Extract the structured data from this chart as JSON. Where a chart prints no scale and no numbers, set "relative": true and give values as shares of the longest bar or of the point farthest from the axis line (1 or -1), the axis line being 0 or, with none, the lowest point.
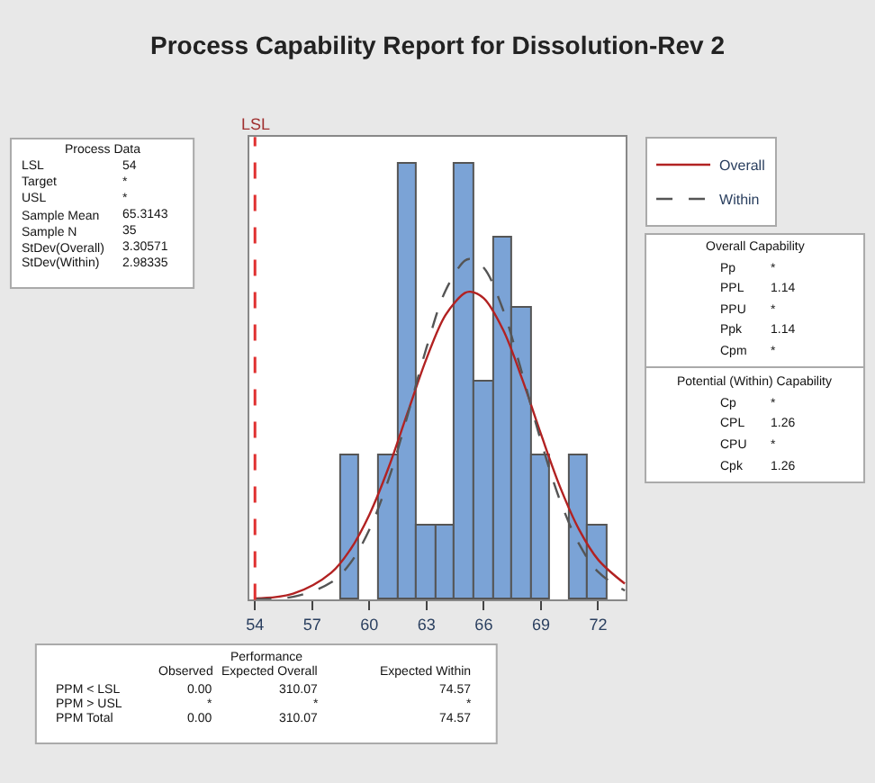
{
  "chart_data": [
    {
      "type": "histogram",
      "title": "Process Capability Report for Dissolution-Rev 2",
      "relative": true,
      "bins": [
        58.5,
        59.5,
        60.5,
        61.5,
        62.5,
        63.5,
        64.5,
        65.5,
        66.5,
        67.5,
        68.5,
        69.5,
        70.5,
        71.5,
        72.5
      ],
      "values": [
        0.33,
        0,
        0.33,
        1,
        0.17,
        0.17,
        1,
        0.5,
        0.83,
        0.67,
        0.33,
        0,
        0.33,
        0.17
      ],
      "color": "#7ba3d6",
      "series": [
        {
          "type": "line",
          "name": "Overall",
          "color": "#b22222",
          "line_style": "solid",
          "x": [
            54,
            56,
            58,
            59,
            60,
            61,
            62,
            63,
            64,
            65,
            65.3,
            66,
            67,
            68,
            69,
            70,
            71,
            72,
            73.4
          ],
          "values": [
            0.002,
            0.013,
            0.061,
            0.114,
            0.194,
            0.301,
            0.427,
            0.552,
            0.652,
            0.702,
            0.705,
            0.69,
            0.619,
            0.507,
            0.379,
            0.258,
            0.16,
            0.091,
            0.036
          ]
        },
        {
          "type": "line",
          "name": "Within",
          "color": "#555555",
          "line_style": "dashed",
          "x": [
            54,
            56,
            58,
            59,
            60,
            61,
            62,
            63,
            64,
            65,
            65.3,
            66,
            67,
            68,
            69,
            70,
            71,
            72,
            73.4
          ],
          "values": [
            0.001,
            0.006,
            0.039,
            0.083,
            0.16,
            0.274,
            0.421,
            0.577,
            0.708,
            0.776,
            0.78,
            0.76,
            0.665,
            0.52,
            0.363,
            0.227,
            0.127,
            0.063,
            0.02
          ]
        }
      ],
      "xlim": [
        53.7,
        73.45
      ],
      "xticks": [
        54,
        57,
        60,
        63,
        66,
        69,
        72
      ],
      "ref_lines": [
        {
          "axis": "x",
          "value": 54,
          "label": "LSL",
          "color": "#e03030",
          "line_style": "dashed"
        }
      ],
      "legend": "top right",
      "marker": "none"
    },
    {
      "type": "other",
      "title": "Process Data",
      "annotations": [
        "LSL",
        "54",
        "Target",
        "*",
        "USL",
        "*",
        "Sample Mean",
        "65.3143",
        "Sample N",
        "35",
        "StDev(Overall)",
        "3.30571",
        "StDev(Within)",
        "2.98335"
      ]
    },
    {
      "type": "other",
      "title": "Overall Capability",
      "annotations": [
        "Pp",
        "*",
        "PPL",
        "1.14",
        "PPU",
        "*",
        "Ppk",
        "1.14",
        "Cpm",
        "*"
      ]
    },
    {
      "type": "other",
      "title": "Potential (Within) Capability",
      "annotations": [
        "Cp",
        "*",
        "CPL",
        "1.26",
        "CPU",
        "*",
        "Cpk",
        "1.26"
      ]
    },
    {
      "type": "other",
      "title": "Performance",
      "annotations": [
        "Observed",
        "Expected Overall",
        "Expected Within",
        "PPM < LSL",
        "0.00",
        "310.07",
        "74.57",
        "PPM > USL",
        "*",
        "*",
        "*",
        "PPM Total",
        "0.00",
        "310.07",
        "74.57"
      ]
    }
  ]
}
